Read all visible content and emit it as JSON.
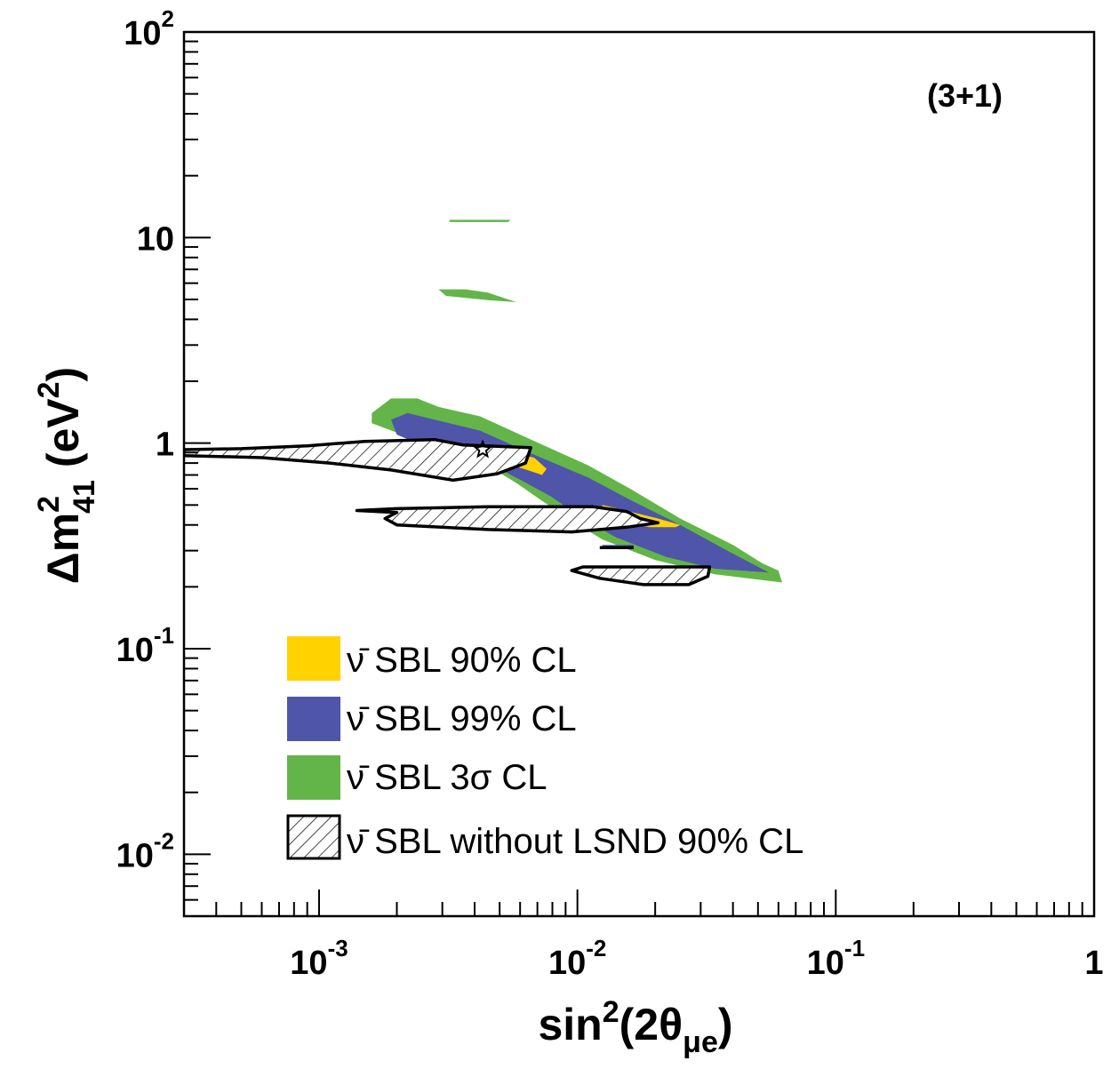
{
  "chart_data": {
    "type": "area",
    "title": "",
    "annotation": "(3+1)",
    "xlabel": {
      "base": "sin",
      "sup": "2",
      "paren_open": "(2θ",
      "sub": "μe",
      "paren_close": ")"
    },
    "ylabel": {
      "base": "Δm",
      "sup": "2",
      "sub": "41",
      "unit_open": " (eV",
      "unit_sup": "2",
      "unit_close": ")"
    },
    "x_scale": "log",
    "y_scale": "log",
    "xlim": [
      0.0003,
      1
    ],
    "ylim": [
      0.005,
      100
    ],
    "x_ticks": [
      {
        "value": 0.001,
        "base": "10",
        "exp": "-3"
      },
      {
        "value": 0.01,
        "base": "10",
        "exp": "-2"
      },
      {
        "value": 0.1,
        "base": "10",
        "exp": "-1"
      },
      {
        "value": 1,
        "base": "1",
        "exp": ""
      }
    ],
    "y_ticks": [
      {
        "value": 0.01,
        "base": "10",
        "exp": "-2"
      },
      {
        "value": 0.1,
        "base": "10",
        "exp": "-1"
      },
      {
        "value": 1,
        "base": "1",
        "exp": ""
      },
      {
        "value": 10,
        "base": "10",
        "exp": ""
      },
      {
        "value": 100,
        "base": "10",
        "exp": "2"
      }
    ],
    "legend": {
      "placement": "lower-left",
      "entries": [
        {
          "symbol": "ν̄",
          "text": " SBL 90% CL",
          "color": "#ffd200",
          "style": "fill"
        },
        {
          "symbol": "ν̄",
          "text": " SBL 99% CL",
          "color": "#4f55a8",
          "style": "fill"
        },
        {
          "symbol": "ν̄",
          "text": " SBL 3σ CL",
          "color": "#63b54a",
          "style": "fill"
        },
        {
          "symbol": "ν̄",
          "text": " SBL without LSND 90% CL",
          "color": "#000000",
          "style": "hatch"
        }
      ]
    },
    "best_fit": {
      "x": 0.0043,
      "y": 0.93
    },
    "regions": {
      "green": [
        [
          [
            0.0016,
            1.4
          ],
          [
            0.0019,
            1.65
          ],
          [
            0.0024,
            1.65
          ],
          [
            0.0029,
            1.5
          ],
          [
            0.0042,
            1.35
          ],
          [
            0.0065,
            1.05
          ],
          [
            0.011,
            0.78
          ],
          [
            0.016,
            0.6
          ],
          [
            0.025,
            0.43
          ],
          [
            0.04,
            0.32
          ],
          [
            0.052,
            0.26
          ],
          [
            0.06,
            0.24
          ],
          [
            0.062,
            0.21
          ],
          [
            0.034,
            0.23
          ],
          [
            0.02,
            0.27
          ],
          [
            0.0125,
            0.34
          ],
          [
            0.0095,
            0.42
          ],
          [
            0.0072,
            0.53
          ],
          [
            0.0058,
            0.64
          ],
          [
            0.0042,
            0.82
          ],
          [
            0.0032,
            0.97
          ],
          [
            0.0021,
            1.1
          ],
          [
            0.0016,
            1.25
          ]
        ],
        [
          [
            0.0029,
            5.6
          ],
          [
            0.0037,
            5.6
          ],
          [
            0.0045,
            5.4
          ],
          [
            0.0058,
            4.85
          ],
          [
            0.0046,
            4.95
          ],
          [
            0.0031,
            5.2
          ]
        ],
        [
          [
            0.0032,
            12.2
          ],
          [
            0.0055,
            12.2
          ],
          [
            0.0054,
            11.9
          ],
          [
            0.0032,
            11.9
          ]
        ]
      ],
      "blue": [
        [
          [
            0.0019,
            1.3
          ],
          [
            0.0022,
            1.4
          ],
          [
            0.0028,
            1.3
          ],
          [
            0.0042,
            1.15
          ],
          [
            0.0065,
            0.9
          ],
          [
            0.011,
            0.68
          ],
          [
            0.016,
            0.53
          ],
          [
            0.025,
            0.4
          ],
          [
            0.038,
            0.3
          ],
          [
            0.055,
            0.235
          ],
          [
            0.034,
            0.245
          ],
          [
            0.022,
            0.28
          ],
          [
            0.014,
            0.35
          ],
          [
            0.0105,
            0.43
          ],
          [
            0.0079,
            0.55
          ],
          [
            0.0062,
            0.65
          ],
          [
            0.0045,
            0.8
          ],
          [
            0.0033,
            0.92
          ],
          [
            0.0024,
            1.0
          ],
          [
            0.002,
            1.1
          ]
        ],
        [
          [
            0.0125,
            0.31
          ],
          [
            0.0165,
            0.31
          ],
          [
            0.0165,
            0.32
          ],
          [
            0.0125,
            0.32
          ]
        ]
      ],
      "yellow": [
        [
          [
            0.0028,
            0.9
          ],
          [
            0.0032,
            0.98
          ],
          [
            0.0042,
            0.97
          ],
          [
            0.0055,
            0.9
          ],
          [
            0.0068,
            0.85
          ],
          [
            0.0076,
            0.75
          ],
          [
            0.0073,
            0.7
          ],
          [
            0.0062,
            0.75
          ],
          [
            0.0048,
            0.82
          ],
          [
            0.0035,
            0.86
          ]
        ],
        [
          [
            0.0125,
            0.5
          ],
          [
            0.0165,
            0.46
          ],
          [
            0.0205,
            0.43
          ],
          [
            0.025,
            0.4
          ],
          [
            0.024,
            0.39
          ],
          [
            0.019,
            0.39
          ],
          [
            0.0145,
            0.42
          ],
          [
            0.0125,
            0.45
          ]
        ]
      ],
      "hatched": [
        [
          [
            0.0003,
            0.93
          ],
          [
            0.0005,
            0.94
          ],
          [
            0.0009,
            0.97
          ],
          [
            0.0015,
            1.02
          ],
          [
            0.0028,
            1.04
          ],
          [
            0.0036,
            0.98
          ],
          [
            0.0066,
            0.95
          ],
          [
            0.0063,
            0.8
          ],
          [
            0.0049,
            0.71
          ],
          [
            0.0033,
            0.66
          ],
          [
            0.0019,
            0.74
          ],
          [
            0.0011,
            0.8
          ],
          [
            0.0006,
            0.85
          ],
          [
            0.0003,
            0.87
          ]
        ],
        [
          [
            0.0014,
            0.47
          ],
          [
            0.002,
            0.48
          ],
          [
            0.0045,
            0.49
          ],
          [
            0.0115,
            0.49
          ],
          [
            0.0155,
            0.465
          ],
          [
            0.0175,
            0.43
          ],
          [
            0.0205,
            0.41
          ],
          [
            0.0155,
            0.39
          ],
          [
            0.0095,
            0.37
          ],
          [
            0.0045,
            0.38
          ],
          [
            0.002,
            0.4
          ],
          [
            0.0018,
            0.43
          ],
          [
            0.002,
            0.46
          ]
        ],
        [
          [
            0.0105,
            0.25
          ],
          [
            0.012,
            0.25
          ],
          [
            0.0325,
            0.25
          ],
          [
            0.032,
            0.225
          ],
          [
            0.027,
            0.205
          ],
          [
            0.018,
            0.205
          ],
          [
            0.0122,
            0.22
          ],
          [
            0.0095,
            0.24
          ]
        ]
      ],
      "extra_line": [
        [
          0.0122,
          0.31
        ],
        [
          0.0165,
          0.31
        ]
      ]
    }
  }
}
